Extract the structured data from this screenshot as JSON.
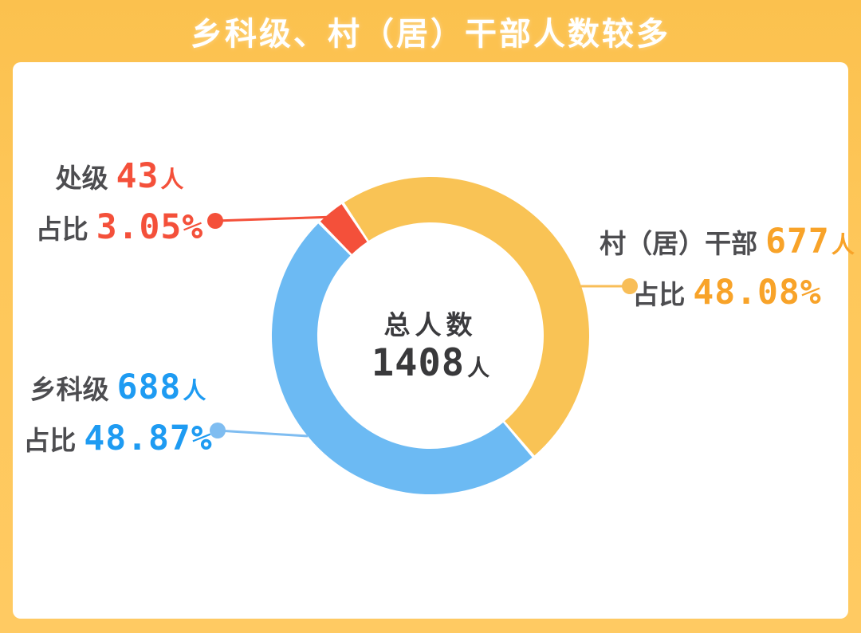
{
  "title": "乡科级、村（居）干部人数较多",
  "strings": {
    "ratio_label": "占比",
    "unit_people": "人"
  },
  "colors": {
    "background_yellow": "#FEC75A",
    "panel_white": "#FFFFFF",
    "title_text": "#FFFFFF",
    "label_gray": "#4D4D50",
    "center_text": "#3B3B3E"
  },
  "center": {
    "label": "总人数",
    "value": "1408",
    "unit": "人"
  },
  "chart_data": {
    "type": "pie",
    "subtype": "donut",
    "title": "乡科级、村（居）干部人数较多",
    "total": {
      "label": "总人数",
      "value": 1408,
      "unit": "人"
    },
    "start_angle_deg": 315.5,
    "direction": "clockwise",
    "legend_position": "callout-labels",
    "series": [
      {
        "name": "处级",
        "value": 43,
        "unit": "人",
        "percent": 3.05,
        "percent_text": "3.05%",
        "slice_color": "#F4503A",
        "text_color": "#F4503A",
        "line_color": "#F4503A"
      },
      {
        "name": "村（居）干部",
        "value": 677,
        "unit": "人",
        "percent": 48.08,
        "percent_text": "48.08%",
        "slice_color": "#F9C355",
        "text_color": "#F8A329",
        "line_color": "#F8BE58"
      },
      {
        "name": "乡科级",
        "value": 688,
        "unit": "人",
        "percent": 48.87,
        "percent_text": "48.87%",
        "slice_color": "#6CBAF3",
        "text_color": "#1E9BF2",
        "line_color": "#7FBDF1"
      }
    ]
  }
}
